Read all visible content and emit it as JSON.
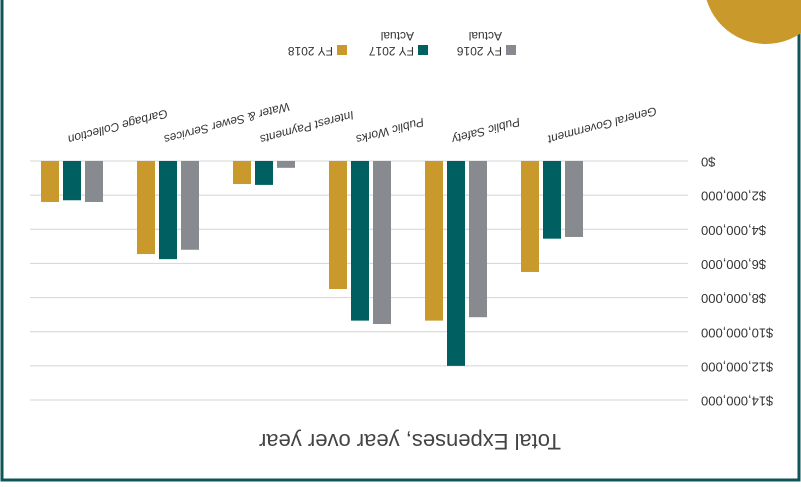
{
  "chart_data": {
    "type": "bar",
    "title": "Total Expenses, year over year",
    "categories": [
      "General Government",
      "Public Safety",
      "Public Works",
      "Interest Payments",
      "Water & Sewer Services",
      "Garbage Collection"
    ],
    "series": [
      {
        "name": "FY 2016 Actual",
        "color": "#878b8f",
        "values": [
          4450000,
          9150000,
          9550000,
          400000,
          5200000,
          2400000
        ]
      },
      {
        "name": "FY 2017 Actual",
        "color": "#005f60",
        "values": [
          4550000,
          12000000,
          9350000,
          1400000,
          5750000,
          2300000
        ]
      },
      {
        "name": "FY 2018",
        "color": "#c9992c",
        "values": [
          6500000,
          9350000,
          7500000,
          1350000,
          5450000,
          2400000
        ]
      }
    ],
    "ylim": [
      0,
      14000000
    ],
    "yticks": [
      {
        "value": 0,
        "label": "$0"
      },
      {
        "value": 2000000,
        "label": "$2,000,000"
      },
      {
        "value": 4000000,
        "label": "$4,000,000"
      },
      {
        "value": 6000000,
        "label": "$6,000,000"
      },
      {
        "value": 8000000,
        "label": "$8,000,000"
      },
      {
        "value": 10000000,
        "label": "$10,000,000"
      },
      {
        "value": 12000000,
        "label": "$12,000,000"
      },
      {
        "value": 14000000,
        "label": "$14,000,000"
      }
    ],
    "grid": true
  }
}
